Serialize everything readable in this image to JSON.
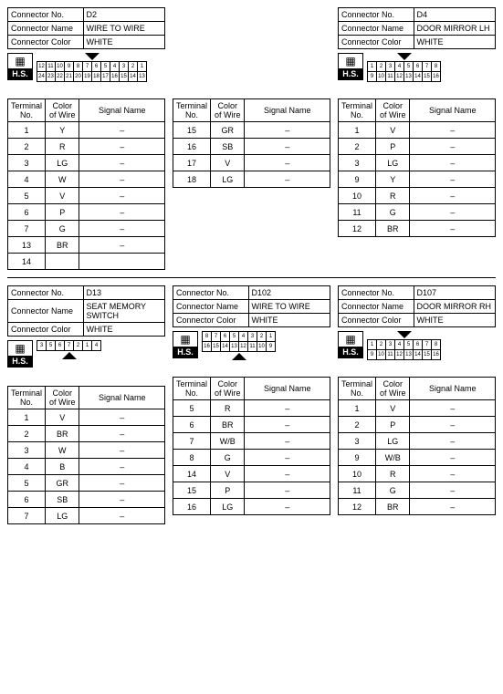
{
  "labels": {
    "connector_no": "Connector No.",
    "connector_name": "Connector Name",
    "connector_color": "Connector Color",
    "terminal_no": "Terminal No.",
    "color_of_wire": "Color of Wire",
    "signal_name": "Signal Name",
    "hs": "H.S."
  },
  "connectors": {
    "D2": {
      "no": "D2",
      "name": "WIRE TO WIRE",
      "color": "WHITE",
      "pins": [
        [
          "12",
          "11",
          "10",
          "9",
          "8",
          "7",
          "6",
          "5",
          "4",
          "3",
          "2",
          "1"
        ],
        [
          "24",
          "23",
          "22",
          "21",
          "20",
          "19",
          "18",
          "17",
          "16",
          "15",
          "14",
          "13"
        ]
      ],
      "latch": "down",
      "rows": [
        {
          "t": "1",
          "c": "Y",
          "s": "–"
        },
        {
          "t": "2",
          "c": "R",
          "s": "–"
        },
        {
          "t": "3",
          "c": "LG",
          "s": "–"
        },
        {
          "t": "4",
          "c": "W",
          "s": "–"
        },
        {
          "t": "5",
          "c": "V",
          "s": "–"
        },
        {
          "t": "6",
          "c": "P",
          "s": "–"
        },
        {
          "t": "7",
          "c": "G",
          "s": "–"
        },
        {
          "t": "13",
          "c": "BR",
          "s": "–"
        },
        {
          "t": "14",
          "c": "",
          "s": ""
        }
      ]
    },
    "D2b": {
      "rows": [
        {
          "t": "15",
          "c": "GR",
          "s": "–"
        },
        {
          "t": "16",
          "c": "SB",
          "s": "–"
        },
        {
          "t": "17",
          "c": "V",
          "s": "–"
        },
        {
          "t": "18",
          "c": "LG",
          "s": "–"
        }
      ]
    },
    "D4": {
      "no": "D4",
      "name": "DOOR MIRROR LH",
      "color": "WHITE",
      "pins": [
        [
          "1",
          "2",
          "3",
          "4",
          "5",
          "6",
          "7",
          "8"
        ],
        [
          "9",
          "10",
          "11",
          "12",
          "13",
          "14",
          "15",
          "16"
        ]
      ],
      "latch": "down",
      "rows": [
        {
          "t": "1",
          "c": "V",
          "s": "–"
        },
        {
          "t": "2",
          "c": "P",
          "s": "–"
        },
        {
          "t": "3",
          "c": "LG",
          "s": "–"
        },
        {
          "t": "9",
          "c": "Y",
          "s": "–"
        },
        {
          "t": "10",
          "c": "R",
          "s": "–"
        },
        {
          "t": "11",
          "c": "G",
          "s": "–"
        },
        {
          "t": "12",
          "c": "BR",
          "s": "–"
        }
      ]
    },
    "D13": {
      "no": "D13",
      "name": "SEAT MEMORY SWITCH",
      "color": "WHITE",
      "pins": [
        [
          "3",
          "5",
          "6",
          "7",
          "2",
          "1",
          "4"
        ]
      ],
      "latch": "up",
      "rows": [
        {
          "t": "1",
          "c": "V",
          "s": "–"
        },
        {
          "t": "2",
          "c": "BR",
          "s": "–"
        },
        {
          "t": "3",
          "c": "W",
          "s": "–"
        },
        {
          "t": "4",
          "c": "B",
          "s": "–"
        },
        {
          "t": "5",
          "c": "GR",
          "s": "–"
        },
        {
          "t": "6",
          "c": "SB",
          "s": "–"
        },
        {
          "t": "7",
          "c": "LG",
          "s": "–"
        }
      ]
    },
    "D102": {
      "no": "D102",
      "name": "WIRE TO WIRE",
      "color": "WHITE",
      "pins": [
        [
          "8",
          "7",
          "6",
          "5",
          "4",
          "3",
          "2",
          "1"
        ],
        [
          "16",
          "15",
          "14",
          "13",
          "12",
          "11",
          "10",
          "9"
        ]
      ],
      "latch": "up",
      "rows": [
        {
          "t": "5",
          "c": "R",
          "s": "–"
        },
        {
          "t": "6",
          "c": "BR",
          "s": "–"
        },
        {
          "t": "7",
          "c": "W/B",
          "s": "–"
        },
        {
          "t": "8",
          "c": "G",
          "s": "–"
        },
        {
          "t": "14",
          "c": "V",
          "s": "–"
        },
        {
          "t": "15",
          "c": "P",
          "s": "–"
        },
        {
          "t": "16",
          "c": "LG",
          "s": "–"
        }
      ]
    },
    "D107": {
      "no": "D107",
      "name": "DOOR MIRROR RH",
      "color": "WHITE",
      "pins": [
        [
          "1",
          "2",
          "3",
          "4",
          "5",
          "6",
          "7",
          "8"
        ],
        [
          "9",
          "10",
          "11",
          "12",
          "13",
          "14",
          "15",
          "16"
        ]
      ],
      "latch": "down",
      "rows": [
        {
          "t": "1",
          "c": "V",
          "s": "–"
        },
        {
          "t": "2",
          "c": "P",
          "s": "–"
        },
        {
          "t": "3",
          "c": "LG",
          "s": "–"
        },
        {
          "t": "9",
          "c": "W/B",
          "s": "–"
        },
        {
          "t": "10",
          "c": "R",
          "s": "–"
        },
        {
          "t": "11",
          "c": "G",
          "s": "–"
        },
        {
          "t": "12",
          "c": "BR",
          "s": "–"
        }
      ]
    }
  }
}
